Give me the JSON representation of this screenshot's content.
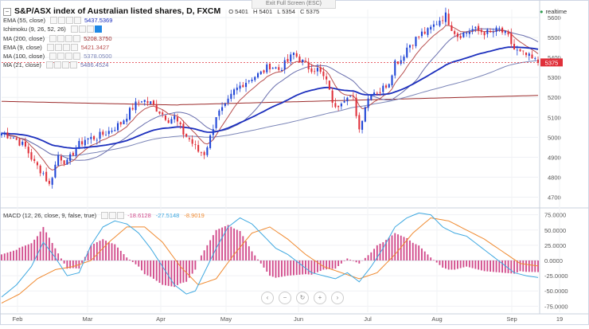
{
  "header": {
    "exit_fullscreen": "Exit Full Screen (ESC)",
    "title": "S&P/ASX index of Australian listed shares, D, FXCM",
    "ohlc": {
      "o": "O 5401",
      "h": "H 5401",
      "l": "L 5354",
      "c": "C 5375"
    },
    "realtime": "realtime"
  },
  "indicators": [
    {
      "label": "EMA (55, close)",
      "value": "5437.5369",
      "color": "#1c2fbd"
    },
    {
      "label": "Ichimoku (9, 26, 52, 26)",
      "value": "",
      "color": "#999999"
    },
    {
      "label": "MA (200, close)",
      "value": "5208.3750",
      "color": "#9c2b2b"
    },
    {
      "label": "EMA (9, close)",
      "value": "5421.3427",
      "color": "#b84f4f"
    },
    {
      "label": "MA (100, close)",
      "value": "5378.0500",
      "color": "#7c86b8"
    },
    {
      "label": "MA (21, close)",
      "value": "5486.4524",
      "color": "#6a6fae"
    }
  ],
  "macd_legend": {
    "label": "MACD (12, 26, close, 9, false, true)",
    "hist": "-18.6128",
    "macd": "-27.5148",
    "signal": "-8.9019"
  },
  "colors": {
    "up": "#1e44d6",
    "down": "#e0303a",
    "ema55": "#1c2fbd",
    "ma200": "#9c2b2b",
    "ema9": "#b84f4f",
    "ma100": "#7c86b8",
    "ma21": "#6a6fae",
    "macd": "#3ea8e0",
    "signal": "#f08a30",
    "hist": "#d14b8b"
  },
  "chart_data": [
    {
      "type": "candlestick",
      "title": "S&P/ASX index of Australian listed shares, D, FXCM",
      "x_labels": [
        "Feb",
        "Mar",
        "Apr",
        "May",
        "Jun",
        "Jul",
        "Aug",
        "Sep",
        "19"
      ],
      "y_ticks": [
        4700,
        4800,
        4900,
        5000,
        5100,
        5200,
        5300,
        5400,
        5500,
        5600
      ],
      "ylim": [
        4650,
        5640
      ],
      "last_price": 5375,
      "price_anchors": [
        [
          0,
          5020
        ],
        [
          4,
          5000
        ],
        [
          8,
          4950
        ],
        [
          11,
          4870
        ],
        [
          14,
          4820
        ],
        [
          16,
          4760
        ],
        [
          19,
          4910
        ],
        [
          22,
          4870
        ],
        [
          25,
          4950
        ],
        [
          28,
          4990
        ],
        [
          32,
          5000
        ],
        [
          36,
          5030
        ],
        [
          40,
          5070
        ],
        [
          44,
          5150
        ],
        [
          47,
          5190
        ],
        [
          50,
          5170
        ],
        [
          53,
          5130
        ],
        [
          56,
          5090
        ],
        [
          58,
          5100
        ],
        [
          61,
          5020
        ],
        [
          63,
          4990
        ],
        [
          66,
          4930
        ],
        [
          68,
          4920
        ],
        [
          70,
          5000
        ],
        [
          72,
          5110
        ],
        [
          75,
          5150
        ],
        [
          78,
          5230
        ],
        [
          81,
          5270
        ],
        [
          84,
          5300
        ],
        [
          87,
          5320
        ],
        [
          90,
          5360
        ],
        [
          93,
          5340
        ],
        [
          96,
          5380
        ],
        [
          98,
          5420
        ],
        [
          100,
          5390
        ],
        [
          103,
          5350
        ],
        [
          106,
          5340
        ],
        [
          108,
          5300
        ],
        [
          110,
          5250
        ],
        [
          111,
          5160
        ],
        [
          113,
          5170
        ],
        [
          115,
          5200
        ],
        [
          118,
          5190
        ],
        [
          119,
          5120
        ],
        [
          120,
          5040
        ],
        [
          122,
          5160
        ],
        [
          124,
          5230
        ],
        [
          127,
          5230
        ],
        [
          130,
          5280
        ],
        [
          132,
          5380
        ],
        [
          134,
          5390
        ],
        [
          136,
          5450
        ],
        [
          138,
          5480
        ],
        [
          141,
          5520
        ],
        [
          143,
          5530
        ],
        [
          145,
          5560
        ],
        [
          147,
          5590
        ],
        [
          149,
          5610
        ],
        [
          151,
          5550
        ],
        [
          153,
          5510
        ],
        [
          155,
          5520
        ],
        [
          158,
          5540
        ],
        [
          161,
          5530
        ],
        [
          164,
          5520
        ],
        [
          167,
          5540
        ],
        [
          170,
          5500
        ],
        [
          172,
          5440
        ],
        [
          174,
          5420
        ],
        [
          176,
          5410
        ],
        [
          178,
          5390
        ],
        [
          180,
          5375
        ]
      ],
      "series_notes": "price candles with EMA(9), MA(21), EMA(55), MA(100), MA(200) overlays"
    },
    {
      "type": "line",
      "title": "MACD (12, 26, close, 9, false, true)",
      "y_ticks": [
        75,
        50,
        25,
        0,
        -25,
        -50,
        -75
      ],
      "y_tick_labels": [
        "75.0000",
        "50.0000",
        "25.0000",
        "0.0000",
        "-25.0000",
        "-50.0000",
        "-75.0000"
      ],
      "ylim": [
        -85,
        85
      ],
      "series": [
        {
          "name": "MACD",
          "anchors": [
            [
              0,
              -60
            ],
            [
              5,
              -40
            ],
            [
              10,
              -10
            ],
            [
              14,
              30
            ],
            [
              18,
              5
            ],
            [
              22,
              -25
            ],
            [
              26,
              -20
            ],
            [
              30,
              25
            ],
            [
              34,
              55
            ],
            [
              38,
              65
            ],
            [
              42,
              60
            ],
            [
              46,
              45
            ],
            [
              50,
              20
            ],
            [
              54,
              -10
            ],
            [
              58,
              -40
            ],
            [
              62,
              -55
            ],
            [
              65,
              -50
            ],
            [
              68,
              -20
            ],
            [
              72,
              20
            ],
            [
              76,
              55
            ],
            [
              80,
              70
            ],
            [
              84,
              60
            ],
            [
              88,
              40
            ],
            [
              92,
              20
            ],
            [
              96,
              10
            ],
            [
              100,
              -5
            ],
            [
              104,
              -20
            ],
            [
              108,
              -25
            ],
            [
              112,
              -30
            ],
            [
              116,
              -20
            ],
            [
              120,
              -35
            ],
            [
              124,
              -10
            ],
            [
              128,
              20
            ],
            [
              132,
              55
            ],
            [
              136,
              70
            ],
            [
              140,
              78
            ],
            [
              144,
              75
            ],
            [
              148,
              55
            ],
            [
              152,
              45
            ],
            [
              156,
              40
            ],
            [
              160,
              25
            ],
            [
              164,
              10
            ],
            [
              168,
              -5
            ],
            [
              172,
              -20
            ],
            [
              176,
              -25
            ],
            [
              180,
              -28
            ]
          ]
        },
        {
          "name": "Signal",
          "anchors": [
            [
              0,
              -70
            ],
            [
              6,
              -55
            ],
            [
              12,
              -30
            ],
            [
              18,
              -15
            ],
            [
              24,
              -10
            ],
            [
              30,
              0
            ],
            [
              36,
              30
            ],
            [
              42,
              55
            ],
            [
              48,
              55
            ],
            [
              54,
              30
            ],
            [
              60,
              -10
            ],
            [
              66,
              -40
            ],
            [
              72,
              -30
            ],
            [
              78,
              10
            ],
            [
              84,
              45
            ],
            [
              90,
              55
            ],
            [
              96,
              35
            ],
            [
              102,
              10
            ],
            [
              108,
              -10
            ],
            [
              114,
              -20
            ],
            [
              120,
              -30
            ],
            [
              126,
              -20
            ],
            [
              132,
              10
            ],
            [
              138,
              45
            ],
            [
              144,
              70
            ],
            [
              150,
              65
            ],
            [
              156,
              50
            ],
            [
              162,
              35
            ],
            [
              168,
              15
            ],
            [
              174,
              -5
            ],
            [
              180,
              -9
            ]
          ]
        }
      ],
      "histogram_note": "MACD minus signal"
    }
  ]
}
